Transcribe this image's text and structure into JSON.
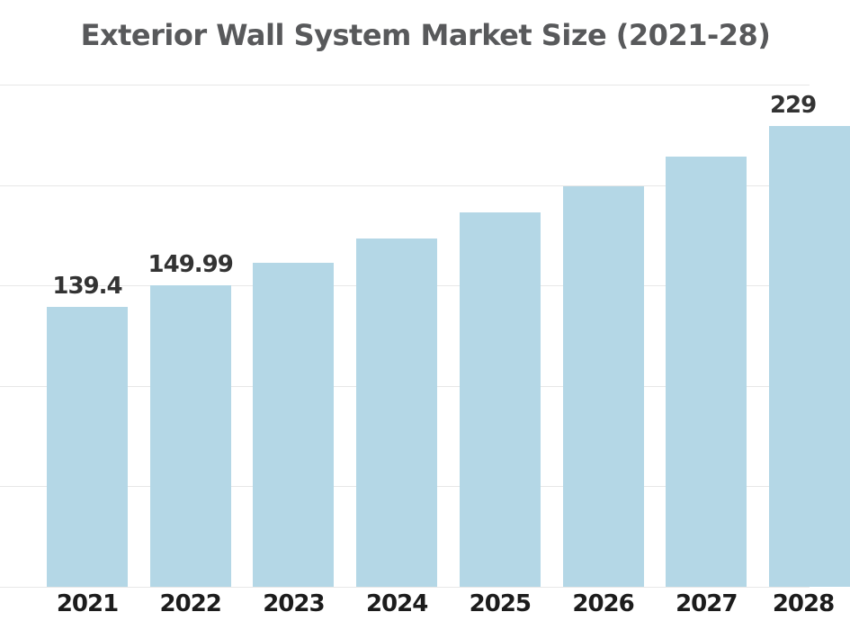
{
  "chart_data": {
    "type": "bar",
    "title": "Exterior Wall System Market Size (2021-28)",
    "categories": [
      "2021",
      "2022",
      "2023",
      "2024",
      "2025",
      "2026",
      "2027",
      "2028"
    ],
    "values": [
      139.4,
      149.99,
      161.5,
      173.6,
      186.2,
      199.5,
      214.0,
      229.4
    ],
    "visible_value_labels": [
      "139.4",
      "149.99",
      null,
      null,
      null,
      null,
      null,
      "229"
    ],
    "xlabel": "",
    "ylabel": "",
    "ylim": [
      0,
      250
    ],
    "gridline_step": 50,
    "grid": "horizontal",
    "y_tick_labels_visible": false,
    "legend": "none",
    "right_edge_cropped": true,
    "colors": {
      "bar_fill": "#b4d7e6",
      "title_text": "#58595b",
      "value_label_text": "#333333",
      "axis_label_text": "#1c1c1c",
      "gridline": "#e7e7e7",
      "background": "#ffffff"
    }
  }
}
